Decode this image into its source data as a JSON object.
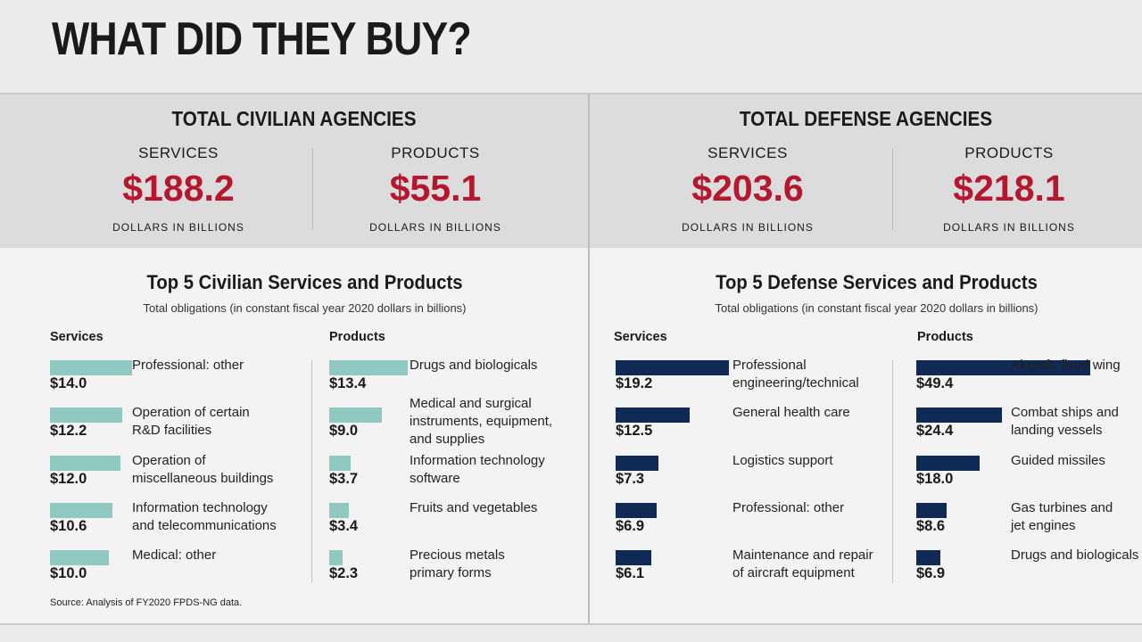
{
  "title": "WHAT DID THEY BUY?",
  "source": "Source: Analysis of FY2020 FPDS-NG data.",
  "colors": {
    "amount": "#b5172e",
    "civilian_bar": "#8fc9c1",
    "defense_bar": "#0f2a55"
  },
  "civilian": {
    "total_title": "TOTAL CIVILIAN AGENCIES",
    "services_label": "SERVICES",
    "services_amount": "$188.2",
    "products_label": "PRODUCTS",
    "products_amount": "$55.1",
    "unit": "DOLLARS IN BILLIONS",
    "top_title": "Top 5 Civilian Services and Products",
    "top_note": "Total obligations (in constant fiscal year 2020 dollars in billions)",
    "services_header": "Services",
    "products_header": "Products"
  },
  "defense": {
    "total_title": "TOTAL DEFENSE AGENCIES",
    "services_label": "SERVICES",
    "services_amount": "$203.6",
    "products_label": "PRODUCTS",
    "products_amount": "$218.1",
    "unit": "DOLLARS IN BILLIONS",
    "top_title": "Top 5 Defense Services and Products",
    "top_note": "Total obligations (in constant fiscal year 2020 dollars in billions)",
    "services_header": "Services",
    "products_header": "Products"
  },
  "chart_data": [
    {
      "type": "bar",
      "orientation": "horizontal",
      "group": "civilian",
      "column": "services",
      "categories": [
        "Professional: other",
        "Operation of certain\nR&D facilities",
        "Operation of\nmiscellaneous buildings",
        "Information technology\nand telecommunications",
        "Medical: other"
      ],
      "values": [
        14.0,
        12.2,
        12.0,
        10.6,
        10.0
      ],
      "value_labels": [
        "$14.0",
        "$12.2",
        "$12.0",
        "$10.6",
        "$10.0"
      ]
    },
    {
      "type": "bar",
      "orientation": "horizontal",
      "group": "civilian",
      "column": "products",
      "categories": [
        "Drugs and biologicals",
        "Medical and surgical\ninstruments, equipment,\nand supplies",
        "Information technology\nsoftware",
        "Fruits and vegetables",
        "Precious metals\nprimary forms"
      ],
      "values": [
        13.4,
        9.0,
        3.7,
        3.4,
        2.3
      ],
      "value_labels": [
        "$13.4",
        "$9.0",
        "$3.7",
        "$3.4",
        "$2.3"
      ]
    },
    {
      "type": "bar",
      "orientation": "horizontal",
      "group": "defense",
      "column": "services",
      "categories": [
        "Professional\nengineering/technical",
        "General health care",
        "Logistics support",
        "Professional: other",
        "Maintenance and repair\nof aircraft equipment"
      ],
      "values": [
        19.2,
        12.5,
        7.3,
        6.9,
        6.1
      ],
      "value_labels": [
        "$19.2",
        "$12.5",
        "$7.3",
        "$6.9",
        "$6.1"
      ]
    },
    {
      "type": "bar",
      "orientation": "horizontal",
      "group": "defense",
      "column": "products",
      "categories": [
        "Aircraft, fixed wing",
        "Combat ships and\nlanding vessels",
        "Guided missiles",
        "Gas turbines and\njet engines",
        "Drugs and biologicals"
      ],
      "values": [
        49.4,
        24.4,
        18.0,
        8.6,
        6.9
      ],
      "value_labels": [
        "$49.4",
        "$24.4",
        "$18.0",
        "$8.6",
        "$6.9"
      ]
    }
  ]
}
